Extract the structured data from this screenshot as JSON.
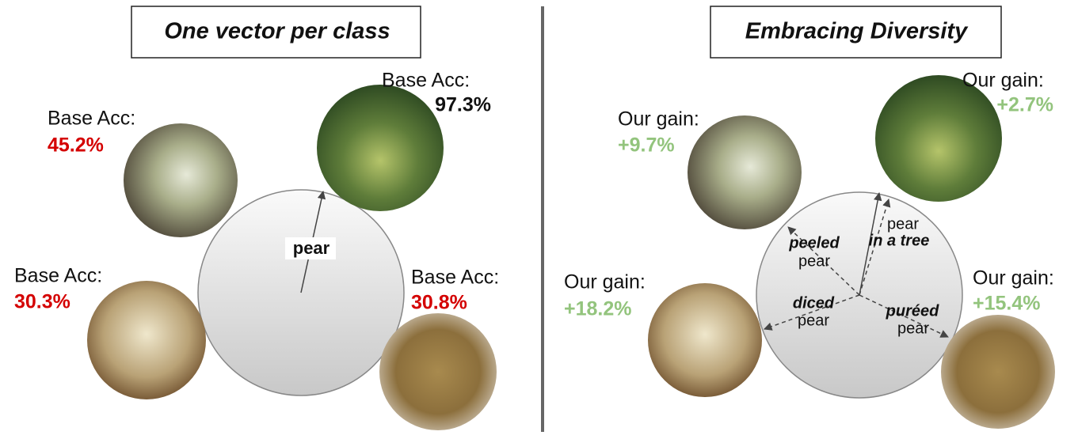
{
  "left": {
    "title": "One vector per class",
    "center_label": "pear",
    "items": [
      {
        "label": "Base Acc:",
        "value": "45.2%"
      },
      {
        "label": "Base Acc:",
        "value": "97.3%"
      },
      {
        "label": "Base Acc:",
        "value": "30.3%"
      },
      {
        "label": "Base Acc:",
        "value": "30.8%"
      }
    ]
  },
  "right": {
    "title": "Embracing Diversity",
    "items": [
      {
        "label": "Our gain:",
        "value": "+9.7%"
      },
      {
        "label": "Our gain:",
        "value": "+2.7%"
      },
      {
        "label": "Our gain:",
        "value": "+18.2%"
      },
      {
        "label": "Our gain:",
        "value": "+15.4%"
      }
    ],
    "directions": [
      {
        "line1": "peeled",
        "line2": "pear"
      },
      {
        "line1": "pear",
        "line2": "in a tree"
      },
      {
        "line1": "diced",
        "line2": "pear"
      },
      {
        "line1": "puréed",
        "line2": "pear"
      }
    ]
  }
}
